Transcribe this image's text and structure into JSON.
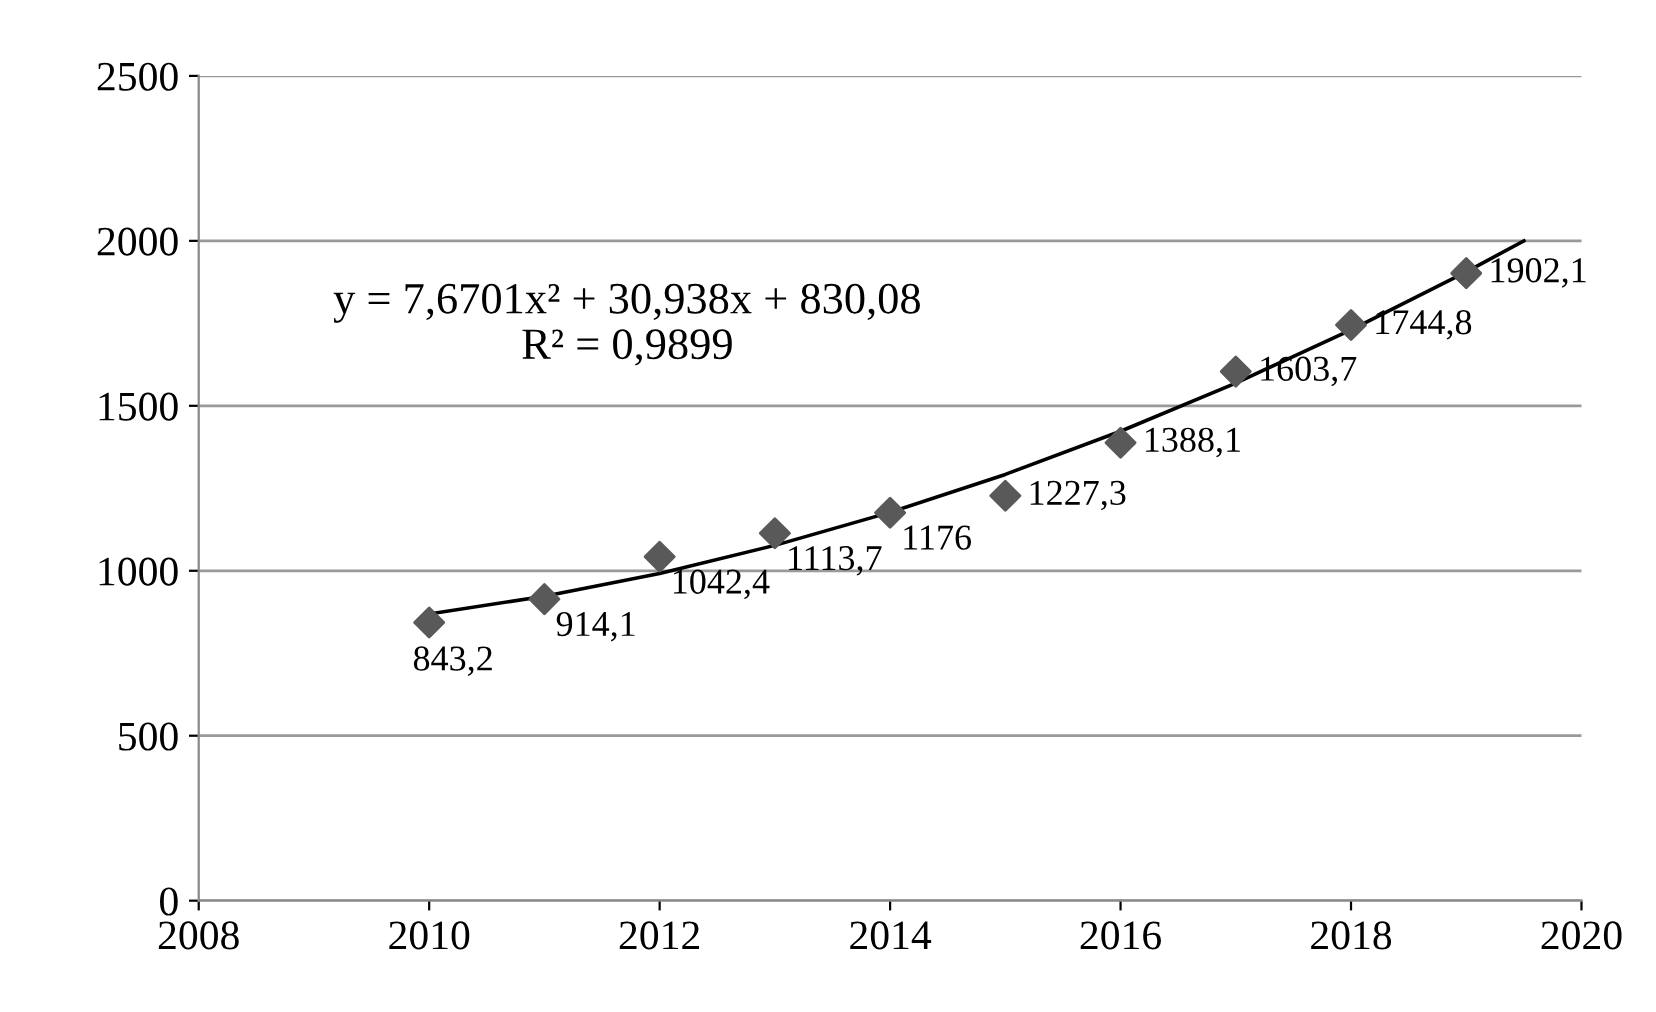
{
  "chart_data": {
    "type": "scatter",
    "annotations": [
      "y = 7,6701x² + 30,938x + 830,08",
      "R² = 0,9899"
    ],
    "series": [
      {
        "color": "#595959",
        "marker": "diamond",
        "x": [
          2010,
          2011,
          2012,
          2013,
          2014,
          2015,
          2016,
          2017,
          2018,
          2019
        ],
        "values": [
          843.2,
          914.1,
          1042.4,
          1113.7,
          1176,
          1227.3,
          1388.1,
          1603.7,
          1744.8,
          1902.1
        ],
        "value_labels": [
          "843,2",
          "914,1",
          "1042,4",
          "1113,7",
          "1176",
          "1227,3",
          "1388,1",
          "1603,7",
          "1744,8",
          "1902,1"
        ]
      },
      {
        "type": "line",
        "color": "#000000",
        "marker": "none",
        "line_style": "solid",
        "x": [
          2010,
          2011,
          2012,
          2013,
          2014,
          2015,
          2016,
          2017,
          2018,
          2019,
          2019.5
        ],
        "values": [
          869,
          923,
          992,
          1077,
          1177,
          1292,
          1423,
          1569,
          1730,
          1906,
          2000
        ]
      }
    ],
    "xlim": [
      2008,
      2020
    ],
    "xticks": [
      2008,
      2010,
      2012,
      2014,
      2016,
      2018,
      2020
    ],
    "ylim": [
      0,
      2500
    ],
    "yticks": [
      0,
      500,
      1000,
      1500,
      2000,
      2500
    ],
    "grid": "y",
    "legend": false
  }
}
